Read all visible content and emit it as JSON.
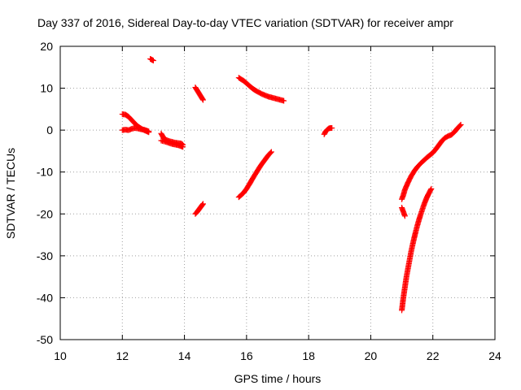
{
  "chart_data": {
    "type": "scatter",
    "title": "Day 337 of 2016, Sidereal Day-to-day VTEC variation (SDTVAR) for receiver ampr",
    "xlabel": "GPS time / hours",
    "ylabel": "SDTVAR / TECUs",
    "xlim": [
      10,
      24
    ],
    "ylim": [
      -50,
      20
    ],
    "xticks": [
      10,
      12,
      14,
      16,
      18,
      20,
      22,
      24
    ],
    "yticks": [
      -50,
      -40,
      -30,
      -20,
      -10,
      0,
      10,
      20
    ],
    "xtick_labels": [
      "10",
      "12",
      "14",
      "16",
      "18",
      "20",
      "22",
      "24"
    ],
    "ytick_labels": [
      "-50",
      "-40",
      "-30",
      "-20",
      "-10",
      "0",
      "10",
      "20"
    ],
    "grid": true,
    "marker": "plus",
    "color": "#ff0000",
    "segments": [
      {
        "x": [
          12.9,
          12.95,
          13.0
        ],
        "y": [
          17.0,
          16.8,
          16.6
        ]
      },
      {
        "x": [
          12.0,
          12.1,
          12.2,
          12.3,
          12.4,
          12.5,
          12.6,
          12.7,
          12.85
        ],
        "y": [
          3.8,
          3.7,
          3.2,
          2.4,
          1.6,
          0.9,
          0.4,
          0.0,
          -0.5
        ]
      },
      {
        "x": [
          12.0,
          12.1,
          12.2,
          12.3,
          12.4,
          12.5,
          12.6,
          12.7,
          12.85
        ],
        "y": [
          0.0,
          0.1,
          0.0,
          0.3,
          0.5,
          0.4,
          0.2,
          0.1,
          -0.3
        ]
      },
      {
        "x": [
          13.25,
          13.3,
          13.35,
          13.4,
          13.5,
          13.6,
          13.7,
          13.8,
          13.9,
          13.95
        ],
        "y": [
          -0.8,
          -1.5,
          -2.0,
          -2.3,
          -2.6,
          -2.8,
          -3.0,
          -3.1,
          -3.2,
          -3.5
        ]
      },
      {
        "x": [
          13.25,
          13.4,
          13.6,
          13.8,
          13.95
        ],
        "y": [
          -2.5,
          -2.8,
          -3.3,
          -3.6,
          -4.0
        ]
      },
      {
        "x": [
          14.35,
          14.4,
          14.45,
          14.5,
          14.55,
          14.6
        ],
        "y": [
          10.2,
          9.6,
          9.0,
          8.4,
          7.8,
          7.2
        ]
      },
      {
        "x": [
          14.35,
          14.4,
          14.45,
          14.5,
          14.55,
          14.6
        ],
        "y": [
          -20.0,
          -19.6,
          -19.1,
          -18.6,
          -18.1,
          -17.6
        ]
      },
      {
        "x": [
          15.75,
          15.9,
          16.0,
          16.1,
          16.2,
          16.3,
          16.4,
          16.5,
          16.6,
          16.7,
          16.8,
          16.9,
          17.0,
          17.1,
          17.2
        ],
        "y": [
          12.5,
          11.8,
          11.2,
          10.5,
          9.9,
          9.4,
          9.0,
          8.6,
          8.3,
          8.0,
          7.8,
          7.6,
          7.4,
          7.2,
          7.0
        ]
      },
      {
        "x": [
          15.75,
          15.9,
          16.0,
          16.1,
          16.2,
          16.3,
          16.4,
          16.5,
          16.6,
          16.7,
          16.8
        ],
        "y": [
          -16.0,
          -15.0,
          -14.0,
          -12.8,
          -11.5,
          -10.3,
          -9.1,
          -8.0,
          -7.0,
          -6.0,
          -5.2
        ]
      },
      {
        "x": [
          18.5,
          18.55,
          18.6,
          18.65,
          18.7,
          18.75
        ],
        "y": [
          -1.0,
          -0.3,
          0.1,
          0.4,
          0.5,
          0.5
        ]
      },
      {
        "x": [
          21.0,
          21.05,
          21.1,
          21.2,
          21.3,
          21.4,
          21.5,
          21.6,
          21.7,
          21.8,
          21.9,
          22.0,
          22.1,
          22.2,
          22.3,
          22.4,
          22.5,
          22.6,
          22.7,
          22.8,
          22.9
        ],
        "y": [
          -16.5,
          -15.5,
          -14.2,
          -12.5,
          -11.0,
          -9.8,
          -8.8,
          -8.0,
          -7.3,
          -6.6,
          -6.0,
          -5.4,
          -4.5,
          -3.5,
          -2.5,
          -1.8,
          -1.4,
          -1.1,
          -0.4,
          0.5,
          1.3
        ]
      },
      {
        "x": [
          21.0,
          21.05,
          21.1,
          21.15,
          21.2,
          21.25,
          21.3,
          21.35,
          21.4,
          21.45,
          21.5,
          21.55,
          21.6,
          21.65,
          21.7,
          21.75,
          21.8,
          21.85,
          21.9,
          21.95
        ],
        "y": [
          -43.0,
          -40.0,
          -37.5,
          -35.0,
          -33.0,
          -31.0,
          -29.0,
          -27.3,
          -25.7,
          -24.2,
          -22.8,
          -21.5,
          -20.3,
          -19.2,
          -18.1,
          -17.1,
          -16.2,
          -15.4,
          -14.7,
          -14.0
        ]
      },
      {
        "x": [
          21.0,
          21.05,
          21.1
        ],
        "y": [
          -18.5,
          -19.5,
          -20.5
        ]
      }
    ]
  }
}
